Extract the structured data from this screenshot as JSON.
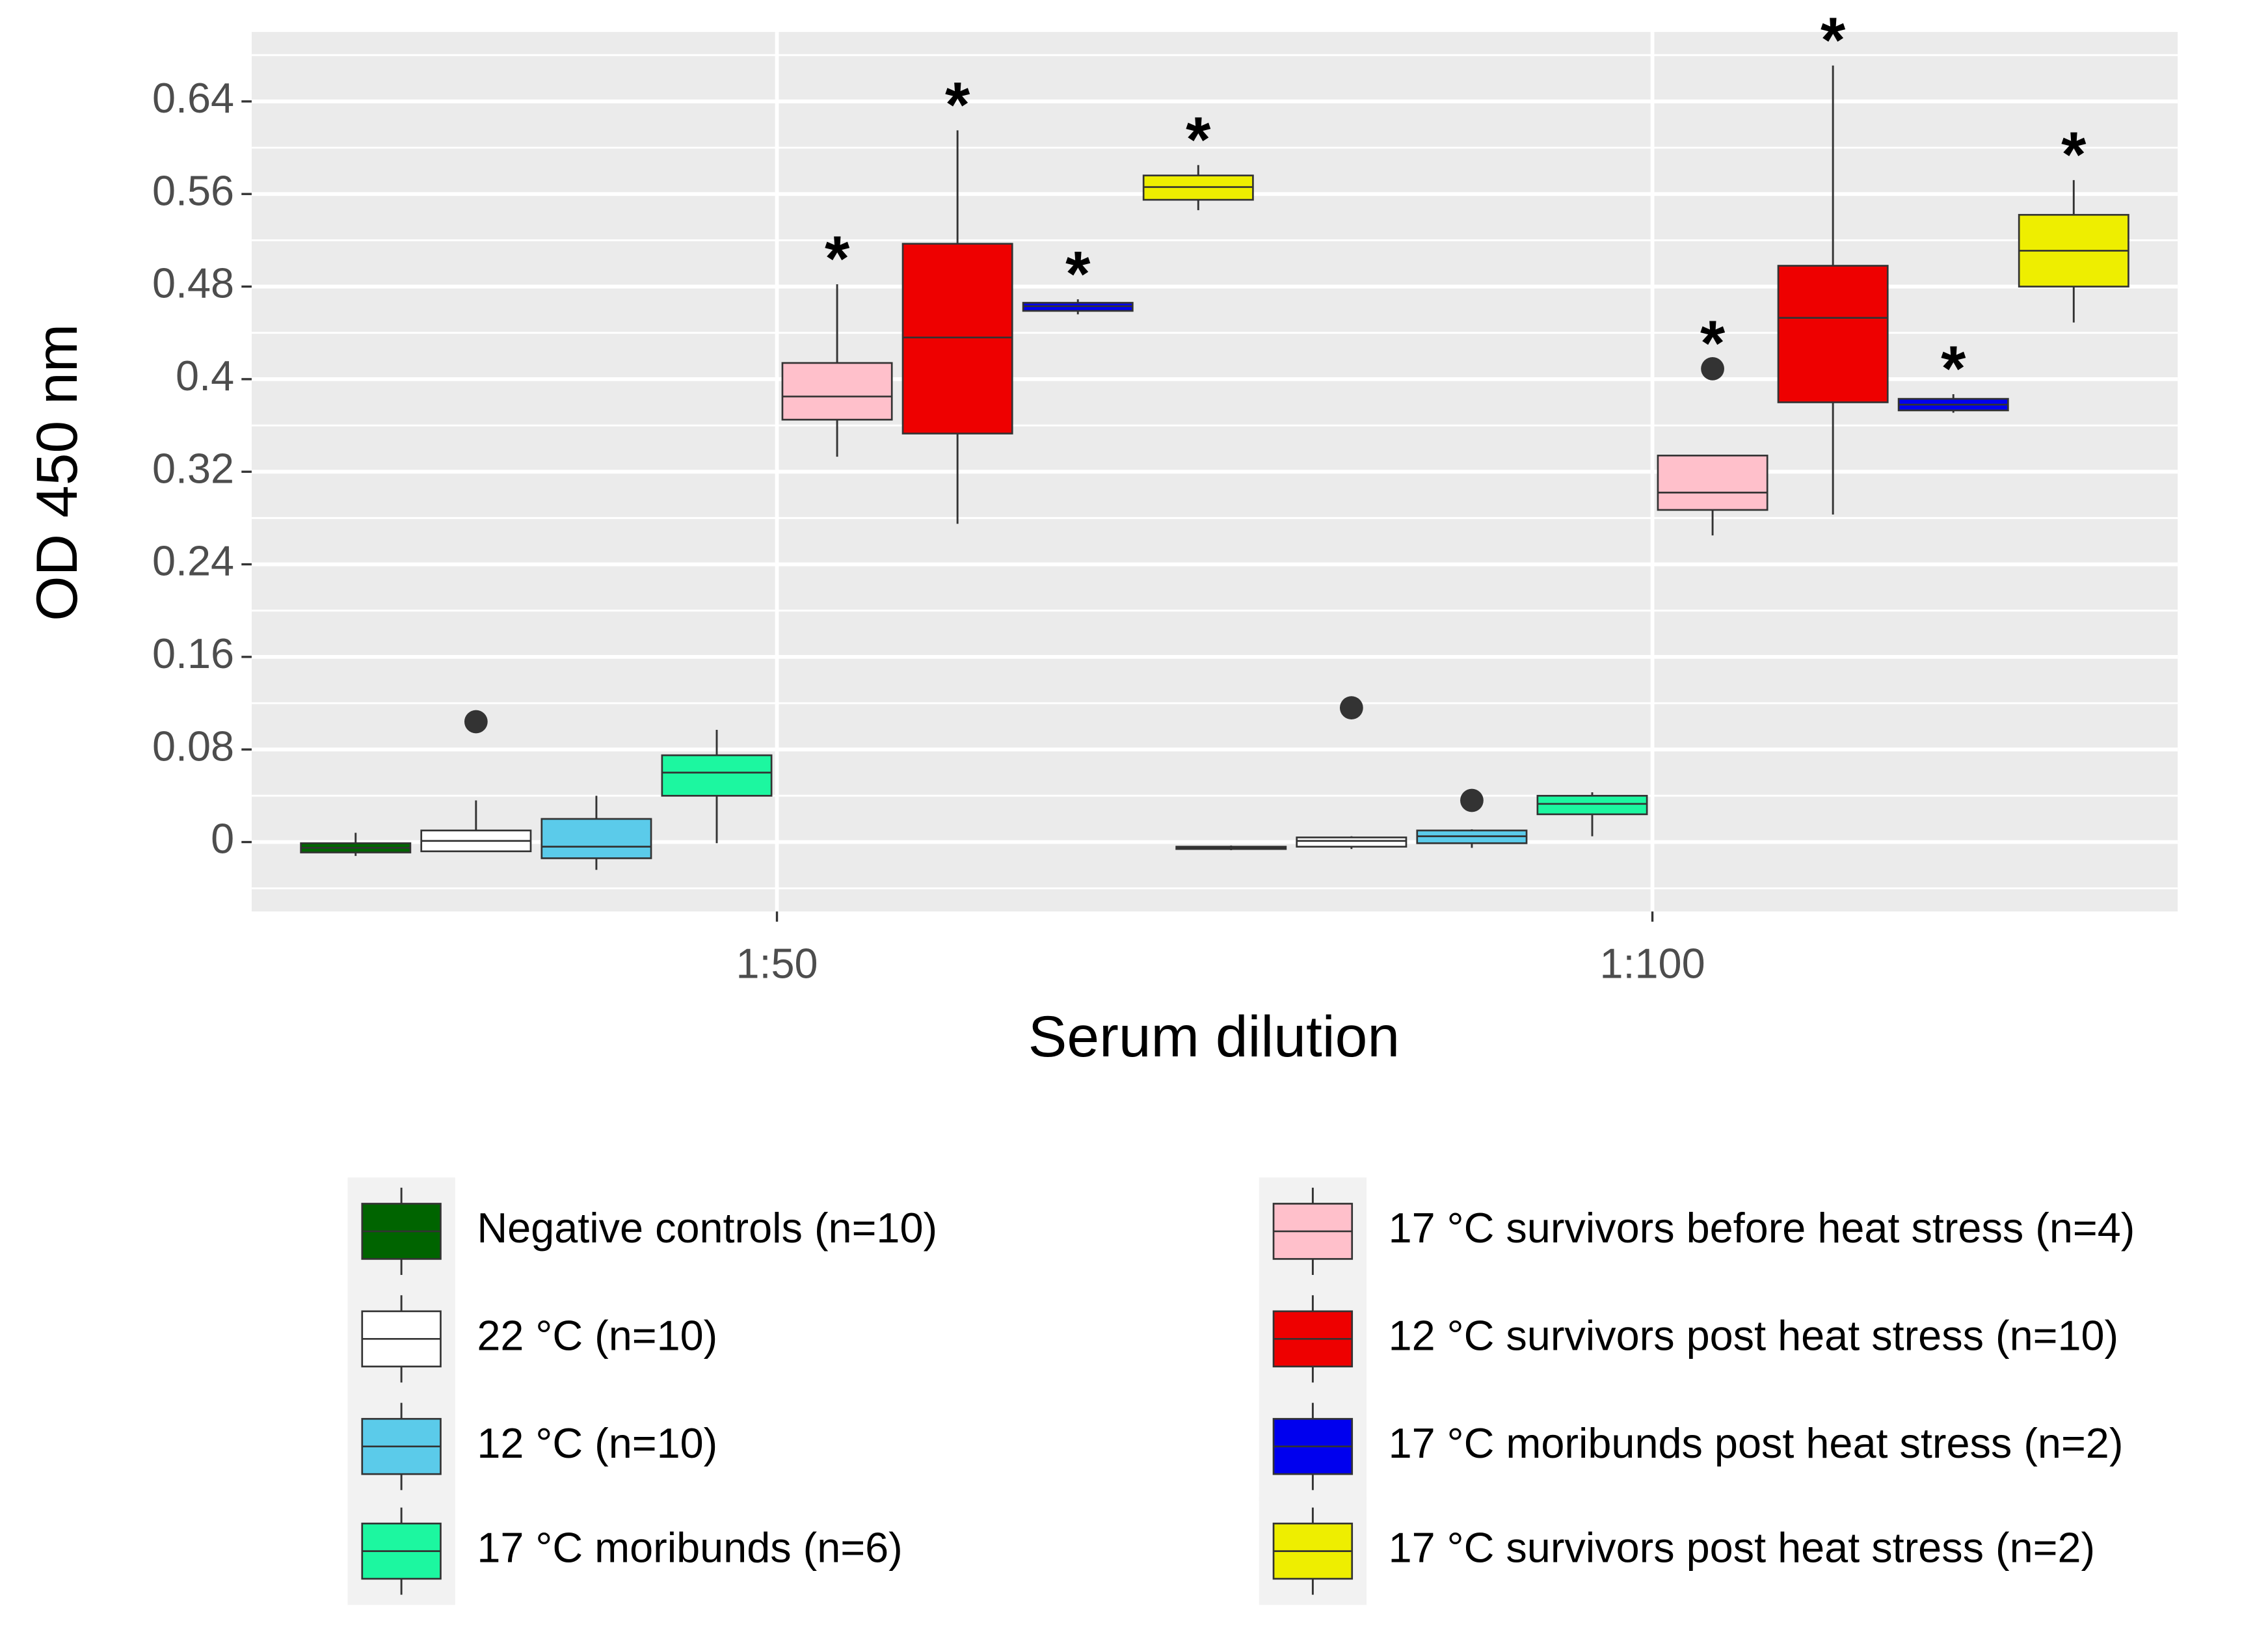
{
  "chart_data": {
    "type": "box",
    "x_label": "Serum dilution",
    "y_label": "OD 450 nm",
    "categories": [
      "1:50",
      "1:100"
    ],
    "ylim": [
      -0.06,
      0.7
    ],
    "yticks": [
      0,
      0.08,
      0.16,
      0.24,
      0.32,
      0.4,
      0.48,
      0.56,
      0.64
    ],
    "grid": true,
    "series": [
      {
        "name": "Negative controls (n=10)",
        "color": "#006400",
        "boxes": [
          {
            "low": -0.012,
            "q1": -0.009,
            "median": -0.005,
            "q3": -0.001,
            "high": 0.008,
            "outliers": []
          },
          {
            "low": -0.007,
            "q1": -0.006,
            "median": -0.005,
            "q3": -0.004,
            "high": -0.003,
            "outliers": []
          }
        ],
        "annotations": [
          null,
          null
        ]
      },
      {
        "name": "22 °C (n=10)",
        "color": "#ffffff",
        "boxes": [
          {
            "low": -0.008,
            "q1": -0.008,
            "median": 0.001,
            "q3": 0.01,
            "high": 0.036,
            "outliers": [
              0.104
            ]
          },
          {
            "low": -0.006,
            "q1": -0.004,
            "median": 0.001,
            "q3": 0.004,
            "high": 0.005,
            "outliers": [
              0.116
            ]
          }
        ],
        "annotations": [
          null,
          null
        ]
      },
      {
        "name": "12 °C (n=10)",
        "color": "#5bcbea",
        "boxes": [
          {
            "low": -0.024,
            "q1": -0.014,
            "median": -0.004,
            "q3": 0.02,
            "high": 0.04,
            "outliers": []
          },
          {
            "low": -0.005,
            "q1": -0.001,
            "median": 0.005,
            "q3": 0.01,
            "high": 0.011,
            "outliers": [
              0.036
            ]
          }
        ],
        "annotations": [
          null,
          null
        ]
      },
      {
        "name": "17 °C moribunds (n=6)",
        "color": "#1cf7a0",
        "boxes": [
          {
            "low": -0.001,
            "q1": 0.04,
            "median": 0.06,
            "q3": 0.075,
            "high": 0.097,
            "outliers": []
          },
          {
            "low": 0.005,
            "q1": 0.024,
            "median": 0.033,
            "q3": 0.04,
            "high": 0.043,
            "outliers": []
          }
        ],
        "annotations": [
          null,
          null
        ]
      },
      {
        "name": "17 °C survivors before heat stress (n=4)",
        "color": "#ffc0cb",
        "boxes": [
          {
            "low": 0.333,
            "q1": 0.365,
            "median": 0.385,
            "q3": 0.414,
            "high": 0.482,
            "outliers": []
          },
          {
            "low": 0.265,
            "q1": 0.287,
            "median": 0.302,
            "q3": 0.334,
            "high": 0.334,
            "outliers": [
              0.409
            ]
          }
        ],
        "annotations": [
          "*",
          "*"
        ]
      },
      {
        "name": "12 °C survivors post heat stress (n=10)",
        "color": "#ee0000",
        "boxes": [
          {
            "low": 0.275,
            "q1": 0.353,
            "median": 0.436,
            "q3": 0.517,
            "high": 0.615,
            "outliers": []
          },
          {
            "low": 0.283,
            "q1": 0.38,
            "median": 0.453,
            "q3": 0.498,
            "high": 0.671,
            "outliers": []
          }
        ],
        "annotations": [
          "*",
          "*"
        ]
      },
      {
        "name": "17 °C moribunds post heat stress (n=2)",
        "color": "#0000ee",
        "boxes": [
          {
            "low": 0.456,
            "q1": 0.459,
            "median": 0.463,
            "q3": 0.466,
            "high": 0.469,
            "outliers": []
          },
          {
            "low": 0.371,
            "q1": 0.373,
            "median": 0.378,
            "q3": 0.383,
            "high": 0.387,
            "outliers": []
          }
        ],
        "annotations": [
          "*",
          "*"
        ]
      },
      {
        "name": "17 °C survivors post heat stress (n=2)",
        "color": "#eeee00",
        "boxes": [
          {
            "low": 0.546,
            "q1": 0.555,
            "median": 0.566,
            "q3": 0.576,
            "high": 0.585,
            "outliers": []
          },
          {
            "low": 0.449,
            "q1": 0.48,
            "median": 0.511,
            "q3": 0.542,
            "high": 0.572,
            "outliers": []
          }
        ],
        "annotations": [
          "*",
          "*"
        ]
      }
    ]
  }
}
